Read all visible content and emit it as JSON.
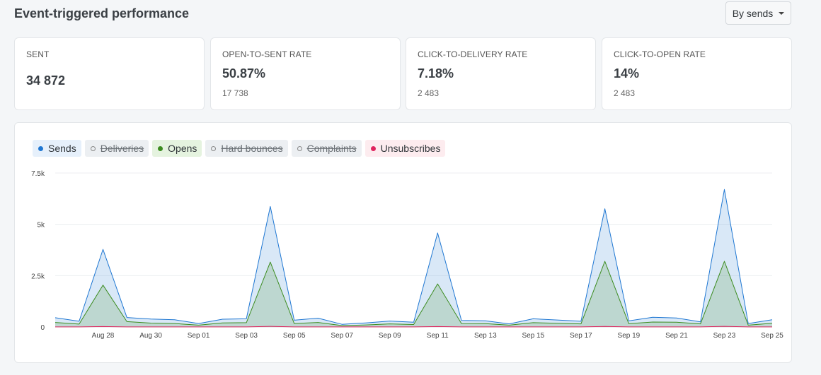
{
  "header": {
    "title": "Event-triggered performance",
    "dropdown_label": "By sends"
  },
  "cards": [
    {
      "label": "SENT",
      "value": "34 872",
      "sub": ""
    },
    {
      "label": "OPEN-TO-SENT RATE",
      "value": "50.87%",
      "sub": "17 738"
    },
    {
      "label": "CLICK-TO-DELIVERY RATE",
      "value": "7.18%",
      "sub": "2 483"
    },
    {
      "label": "CLICK-TO-OPEN RATE",
      "value": "14%",
      "sub": "2 483"
    }
  ],
  "legend": [
    {
      "label": "Sends",
      "active": true,
      "color": "#1f77d2",
      "bg": "#e6f0fb"
    },
    {
      "label": "Deliveries",
      "active": false,
      "color": "#888888",
      "bg": "#eceff2"
    },
    {
      "label": "Opens",
      "active": true,
      "color": "#3c8c1f",
      "bg": "#e5f3df"
    },
    {
      "label": "Hard bounces",
      "active": false,
      "color": "#888888",
      "bg": "#eceff2"
    },
    {
      "label": "Complaints",
      "active": false,
      "color": "#888888",
      "bg": "#eceff2"
    },
    {
      "label": "Unsubscribes",
      "active": true,
      "color": "#e0245e",
      "bg": "#fdecef"
    }
  ],
  "chart_data": {
    "type": "area",
    "y_ticks": [
      "0",
      "2.5k",
      "5k",
      "7.5k"
    ],
    "y_tick_values": [
      0,
      2500,
      5000,
      7500
    ],
    "ylim": [
      0,
      7500
    ],
    "x_tick_labels": [
      "Aug 28",
      "Aug 30",
      "Sep 01",
      "Sep 03",
      "Sep 05",
      "Sep 07",
      "Sep 09",
      "Sep 11",
      "Sep 13",
      "Sep 15",
      "Sep 17",
      "Sep 19",
      "Sep 21",
      "Sep 23",
      "Sep 25"
    ],
    "grid": true,
    "series": [
      {
        "name": "Sends",
        "color": "#1f77d2",
        "values": [
          450,
          280,
          3780,
          460,
          390,
          350,
          170,
          380,
          400,
          5870,
          330,
          430,
          130,
          200,
          290,
          230,
          4580,
          320,
          300,
          150,
          400,
          340,
          280,
          5760,
          300,
          470,
          440,
          250,
          6700,
          170,
          350
        ]
      },
      {
        "name": "Opens",
        "color": "#3c8c1f",
        "values": [
          220,
          140,
          2040,
          260,
          190,
          170,
          90,
          200,
          210,
          3160,
          170,
          220,
          70,
          100,
          150,
          120,
          2100,
          170,
          160,
          90,
          210,
          180,
          150,
          3200,
          160,
          240,
          230,
          150,
          3200,
          90,
          180
        ]
      },
      {
        "name": "Unsubscribes",
        "color": "#e0245e",
        "values": [
          5,
          3,
          20,
          5,
          4,
          4,
          2,
          4,
          4,
          30,
          3,
          4,
          2,
          2,
          3,
          3,
          22,
          3,
          3,
          2,
          4,
          3,
          3,
          28,
          3,
          5,
          4,
          3,
          30,
          2,
          4
        ]
      }
    ]
  }
}
